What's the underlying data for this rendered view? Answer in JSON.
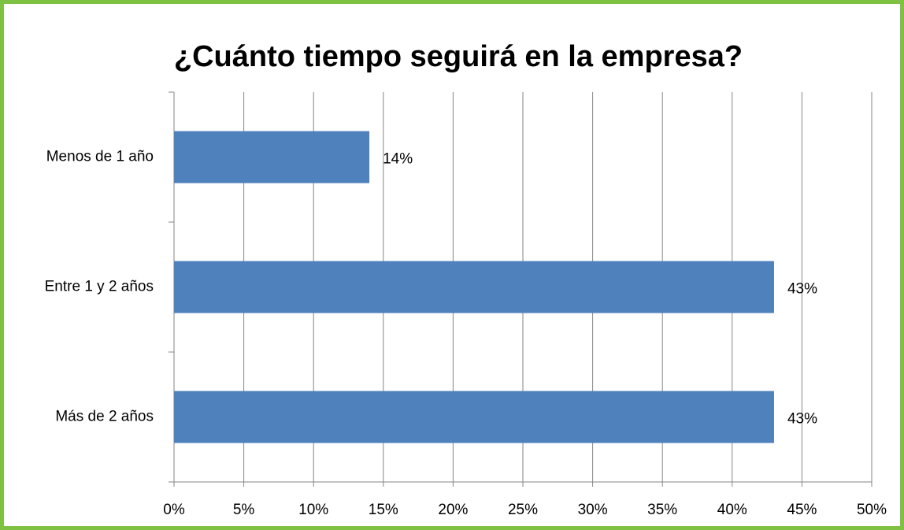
{
  "chart_data": {
    "type": "bar",
    "orientation": "horizontal",
    "title": "¿Cuánto tiempo seguirá en la empresa?",
    "categories": [
      "Menos de 1 año",
      "Entre 1 y 2 años",
      "Más de 2 años"
    ],
    "values": [
      14,
      43,
      43
    ],
    "value_labels": [
      "14%",
      "43%",
      "43%"
    ],
    "color": "#4f81bd",
    "xlim": [
      0,
      50
    ],
    "xticks": [
      {
        "value": 0,
        "label": "0%"
      },
      {
        "value": 5,
        "label": "5%"
      },
      {
        "value": 10,
        "label": "10%"
      },
      {
        "value": 15,
        "label": "15%"
      },
      {
        "value": 20,
        "label": "20%"
      },
      {
        "value": 25,
        "label": "25%"
      },
      {
        "value": 30,
        "label": "30%"
      },
      {
        "value": 35,
        "label": "35%"
      },
      {
        "value": 40,
        "label": "40%"
      },
      {
        "value": 45,
        "label": "45%"
      },
      {
        "value": 50,
        "label": "50%"
      }
    ],
    "grid": true
  }
}
